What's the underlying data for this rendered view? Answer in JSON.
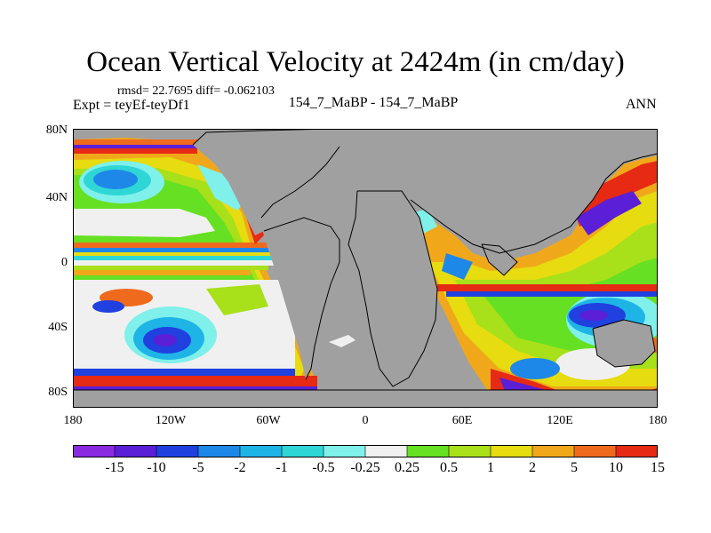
{
  "title": "Ocean Vertical Velocity at 2424m (in cm/day)",
  "stats": "rmsd= 22.7695  diff= -0.062103",
  "expt": "Expt = teyEf-teyDf1",
  "case": "154_7_MaBP - 154_7_MaBP",
  "season": "ANN",
  "y_ticks": [
    "80N",
    "40N",
    "0",
    "40S",
    "80S"
  ],
  "x_ticks": [
    "180",
    "120W",
    "60W",
    "0",
    "60E",
    "120E",
    "180"
  ],
  "colorbar": {
    "labels": [
      "-15",
      "-10",
      "-5",
      "-2",
      "-1",
      "-0.5",
      "-0.25",
      "0.25",
      "0.5",
      "1",
      "2",
      "5",
      "10",
      "15"
    ],
    "colors": [
      "#8a2be2",
      "#5a1fd6",
      "#2040e0",
      "#1e88e8",
      "#1fb4e6",
      "#2fd6d6",
      "#7ff0ea",
      "#f0f0f0",
      "#66e022",
      "#a8e01a",
      "#e6dc10",
      "#f0a81a",
      "#f06a1e",
      "#e62a14"
    ]
  },
  "land_color": "#a0a0a0"
}
